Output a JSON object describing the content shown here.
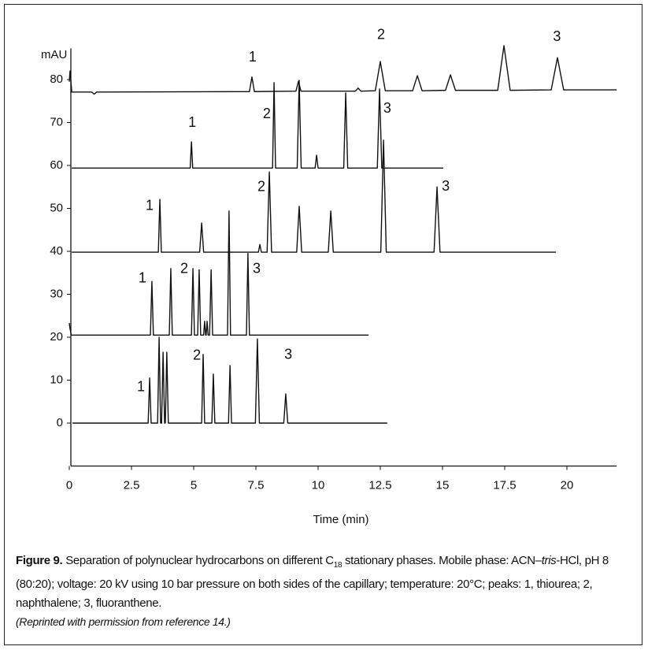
{
  "chart_data": {
    "type": "line",
    "ylabel": "mAU",
    "xlabel": "Time (min)",
    "xlim": [
      0,
      22
    ],
    "xticks": [
      0,
      2.5,
      5,
      7.5,
      10,
      12.5,
      15,
      17.5,
      20
    ],
    "ylim": [
      -10,
      88
    ],
    "yticks": [
      0,
      10,
      20,
      30,
      40,
      50,
      60,
      70,
      80
    ],
    "grid": false,
    "series": [
      {
        "color": "#111111",
        "x": [
          0.13,
          3.17,
          3.23,
          3.29,
          3.55,
          3.61,
          3.67,
          3.71,
          3.77,
          3.83,
          3.86,
          3.92,
          3.98,
          5.32,
          5.38,
          5.44,
          5.73,
          5.79,
          5.85,
          6.4,
          6.46,
          6.52,
          7.48,
          7.56,
          7.64,
          8.62,
          8.7,
          8.78,
          12.78
        ],
        "values": [
          0,
          0,
          10.5,
          0,
          0,
          20,
          0,
          0,
          16.5,
          0,
          0,
          16.5,
          0,
          0,
          16,
          0,
          0,
          11.4,
          0,
          0,
          13.4,
          0,
          0,
          19.6,
          0,
          0,
          6.8,
          0,
          0
        ]
      },
      {
        "color": "#111111",
        "x": [
          0,
          0.03,
          0.08,
          3.26,
          3.32,
          3.38,
          4.02,
          4.08,
          4.14,
          4.91,
          4.97,
          5.03,
          5.16,
          5.22,
          5.28,
          5.4,
          5.44,
          5.48,
          5.5,
          5.54,
          5.58,
          5.64,
          5.7,
          5.76,
          6.36,
          6.42,
          6.48,
          7.12,
          7.18,
          7.24,
          12.03
        ],
        "values": [
          23.3,
          22,
          20.5,
          20.5,
          33,
          20.5,
          20.5,
          36,
          20.5,
          20.5,
          36,
          20.5,
          20.5,
          35.7,
          20.5,
          20.5,
          23.7,
          20.5,
          20.5,
          23.7,
          20.5,
          20.5,
          35.7,
          20.5,
          20.5,
          49.4,
          20.5,
          20.5,
          39.5,
          20.5,
          20.5
        ]
      },
      {
        "color": "#111111",
        "x": [
          0.1,
          3.58,
          3.64,
          3.7,
          5.24,
          5.32,
          5.4,
          7.6,
          7.66,
          7.72,
          7.95,
          8.04,
          8.13,
          9.14,
          9.24,
          9.34,
          10.41,
          10.51,
          10.61,
          12.52,
          12.63,
          12.74,
          14.66,
          14.78,
          14.9,
          19.56
        ],
        "values": [
          39.8,
          39.8,
          52.1,
          39.8,
          39.8,
          46.6,
          39.8,
          39.8,
          41.6,
          39.8,
          39.8,
          58.5,
          39.8,
          39.8,
          50.5,
          39.8,
          39.8,
          49.4,
          39.8,
          39.8,
          65.9,
          39.8,
          39.8,
          55,
          39.8,
          39.8
        ]
      },
      {
        "color": "#111111",
        "x": [
          0.1,
          4.86,
          4.91,
          4.96,
          8.17,
          8.23,
          8.29,
          9.16,
          9.24,
          9.32,
          9.88,
          9.94,
          10.0,
          11.03,
          11.11,
          11.19,
          12.38,
          12.47,
          12.56,
          15.03
        ],
        "values": [
          59.4,
          59.4,
          65.5,
          59.4,
          59.4,
          79.3,
          59.4,
          59.4,
          79.8,
          59.4,
          59.4,
          62.4,
          59.4,
          59.4,
          76.9,
          59.4,
          59.4,
          77.8,
          59.4,
          59.4
        ]
      },
      {
        "color": "#111111",
        "x": [
          0,
          0.03,
          0.1,
          0.9,
          1.0,
          1.1,
          7.24,
          7.34,
          7.44,
          9.11,
          9.21,
          9.31,
          11.5,
          11.61,
          11.72,
          12.3,
          12.5,
          12.7,
          13.8,
          13.99,
          14.18,
          15.12,
          15.32,
          15.52,
          17.22,
          17.47,
          17.72,
          19.37,
          19.62,
          19.87,
          22
        ],
        "values": [
          79.5,
          82,
          77.1,
          77.1,
          76.6,
          77.1,
          77.2,
          80.6,
          77.2,
          77.3,
          79.6,
          77.3,
          77.3,
          78,
          77.3,
          77.4,
          84.2,
          77.4,
          77.4,
          80.9,
          77.4,
          77.5,
          81.1,
          77.5,
          77.5,
          87.9,
          77.5,
          77.6,
          85.1,
          77.6,
          77.6
        ]
      }
    ],
    "annotations": [
      {
        "text": "1",
        "x": 2.88,
        "y": 8.3
      },
      {
        "text": "2",
        "x": 5.13,
        "y": 15.6
      },
      {
        "text": "3",
        "x": 8.8,
        "y": 15.8
      },
      {
        "text": "1",
        "x": 2.94,
        "y": 33.6
      },
      {
        "text": "2",
        "x": 4.62,
        "y": 35.8
      },
      {
        "text": "3",
        "x": 7.53,
        "y": 35.8
      },
      {
        "text": "1",
        "x": 3.23,
        "y": 50.5
      },
      {
        "text": "2",
        "x": 7.72,
        "y": 54.9
      },
      {
        "text": "3",
        "x": 15.13,
        "y": 55
      },
      {
        "text": "1",
        "x": 4.94,
        "y": 69.9
      },
      {
        "text": "2",
        "x": 7.94,
        "y": 71.9
      },
      {
        "text": "3",
        "x": 12.78,
        "y": 73.2
      },
      {
        "text": "1",
        "x": 7.37,
        "y": 85.1
      },
      {
        "text": "2",
        "x": 12.53,
        "y": 90.3
      },
      {
        "text": "3",
        "x": 19.6,
        "y": 89.9
      }
    ]
  },
  "caption": {
    "label": "Figure 9.",
    "parts": [
      "Separation of polynuclear hydrocarbons on different C",
      "18",
      " stationary phases. Mobile phase: ACN–",
      "tris",
      "-HCl, pH 8 (80:20); voltage: 20 kV using 10 bar pressure on both sides of the capillary; temperature: 20°C; peaks: 1, thiourea; 2, naphthalene; 3, fluoranthene."
    ],
    "credit": "(Reprinted with permission from reference 14.)"
  }
}
